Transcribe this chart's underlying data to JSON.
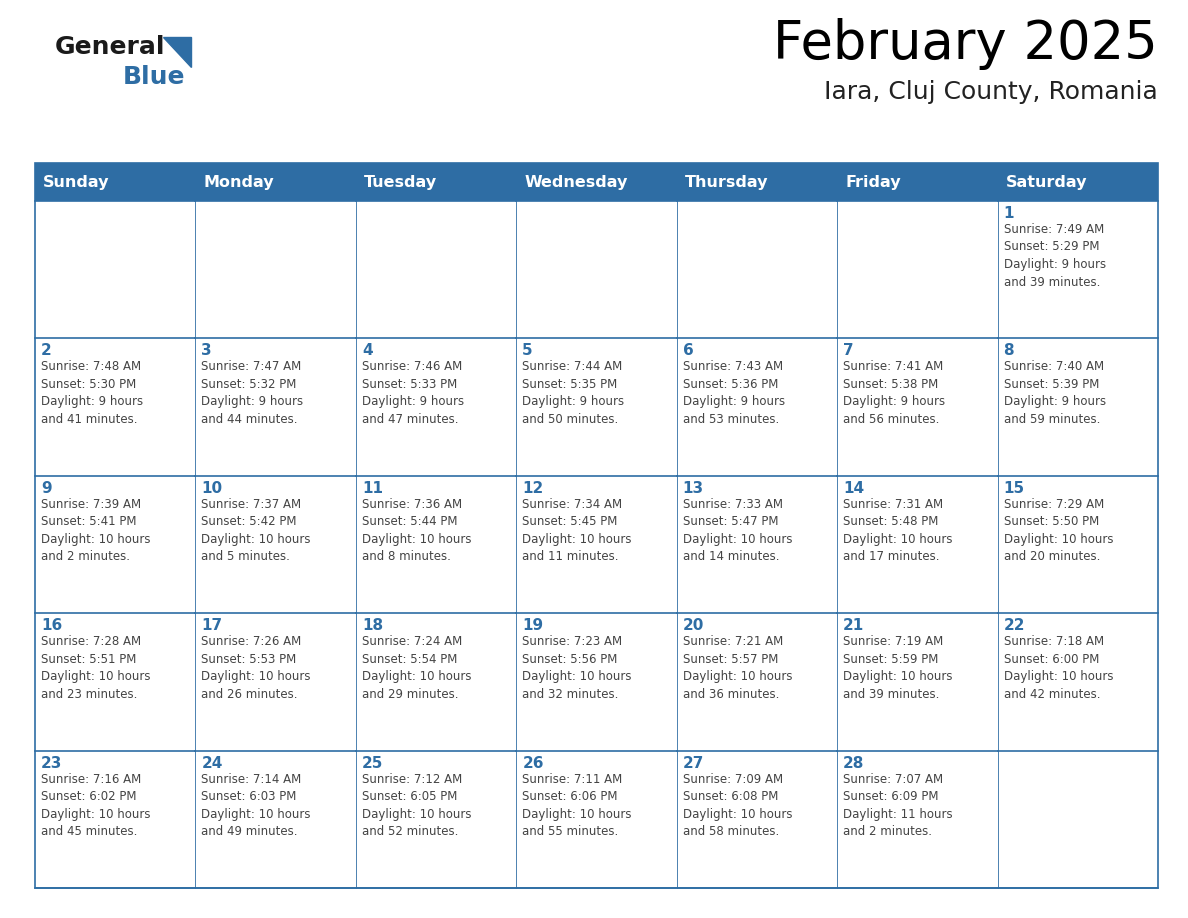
{
  "title": "February 2025",
  "subtitle": "Iara, Cluj County, Romania",
  "header_bg_color": "#2E6DA4",
  "header_text_color": "#FFFFFF",
  "cell_bg_color": "#FFFFFF",
  "border_color": "#2E6DA4",
  "day_headers": [
    "Sunday",
    "Monday",
    "Tuesday",
    "Wednesday",
    "Thursday",
    "Friday",
    "Saturday"
  ],
  "title_color": "#000000",
  "subtitle_color": "#222222",
  "day_num_color": "#2E6DA4",
  "cell_text_color": "#444444",
  "logo_triangle_color": "#2E6DA4",
  "calendar_data": [
    [
      {
        "day": "",
        "info": ""
      },
      {
        "day": "",
        "info": ""
      },
      {
        "day": "",
        "info": ""
      },
      {
        "day": "",
        "info": ""
      },
      {
        "day": "",
        "info": ""
      },
      {
        "day": "",
        "info": ""
      },
      {
        "day": "1",
        "info": "Sunrise: 7:49 AM\nSunset: 5:29 PM\nDaylight: 9 hours\nand 39 minutes."
      }
    ],
    [
      {
        "day": "2",
        "info": "Sunrise: 7:48 AM\nSunset: 5:30 PM\nDaylight: 9 hours\nand 41 minutes."
      },
      {
        "day": "3",
        "info": "Sunrise: 7:47 AM\nSunset: 5:32 PM\nDaylight: 9 hours\nand 44 minutes."
      },
      {
        "day": "4",
        "info": "Sunrise: 7:46 AM\nSunset: 5:33 PM\nDaylight: 9 hours\nand 47 minutes."
      },
      {
        "day": "5",
        "info": "Sunrise: 7:44 AM\nSunset: 5:35 PM\nDaylight: 9 hours\nand 50 minutes."
      },
      {
        "day": "6",
        "info": "Sunrise: 7:43 AM\nSunset: 5:36 PM\nDaylight: 9 hours\nand 53 minutes."
      },
      {
        "day": "7",
        "info": "Sunrise: 7:41 AM\nSunset: 5:38 PM\nDaylight: 9 hours\nand 56 minutes."
      },
      {
        "day": "8",
        "info": "Sunrise: 7:40 AM\nSunset: 5:39 PM\nDaylight: 9 hours\nand 59 minutes."
      }
    ],
    [
      {
        "day": "9",
        "info": "Sunrise: 7:39 AM\nSunset: 5:41 PM\nDaylight: 10 hours\nand 2 minutes."
      },
      {
        "day": "10",
        "info": "Sunrise: 7:37 AM\nSunset: 5:42 PM\nDaylight: 10 hours\nand 5 minutes."
      },
      {
        "day": "11",
        "info": "Sunrise: 7:36 AM\nSunset: 5:44 PM\nDaylight: 10 hours\nand 8 minutes."
      },
      {
        "day": "12",
        "info": "Sunrise: 7:34 AM\nSunset: 5:45 PM\nDaylight: 10 hours\nand 11 minutes."
      },
      {
        "day": "13",
        "info": "Sunrise: 7:33 AM\nSunset: 5:47 PM\nDaylight: 10 hours\nand 14 minutes."
      },
      {
        "day": "14",
        "info": "Sunrise: 7:31 AM\nSunset: 5:48 PM\nDaylight: 10 hours\nand 17 minutes."
      },
      {
        "day": "15",
        "info": "Sunrise: 7:29 AM\nSunset: 5:50 PM\nDaylight: 10 hours\nand 20 minutes."
      }
    ],
    [
      {
        "day": "16",
        "info": "Sunrise: 7:28 AM\nSunset: 5:51 PM\nDaylight: 10 hours\nand 23 minutes."
      },
      {
        "day": "17",
        "info": "Sunrise: 7:26 AM\nSunset: 5:53 PM\nDaylight: 10 hours\nand 26 minutes."
      },
      {
        "day": "18",
        "info": "Sunrise: 7:24 AM\nSunset: 5:54 PM\nDaylight: 10 hours\nand 29 minutes."
      },
      {
        "day": "19",
        "info": "Sunrise: 7:23 AM\nSunset: 5:56 PM\nDaylight: 10 hours\nand 32 minutes."
      },
      {
        "day": "20",
        "info": "Sunrise: 7:21 AM\nSunset: 5:57 PM\nDaylight: 10 hours\nand 36 minutes."
      },
      {
        "day": "21",
        "info": "Sunrise: 7:19 AM\nSunset: 5:59 PM\nDaylight: 10 hours\nand 39 minutes."
      },
      {
        "day": "22",
        "info": "Sunrise: 7:18 AM\nSunset: 6:00 PM\nDaylight: 10 hours\nand 42 minutes."
      }
    ],
    [
      {
        "day": "23",
        "info": "Sunrise: 7:16 AM\nSunset: 6:02 PM\nDaylight: 10 hours\nand 45 minutes."
      },
      {
        "day": "24",
        "info": "Sunrise: 7:14 AM\nSunset: 6:03 PM\nDaylight: 10 hours\nand 49 minutes."
      },
      {
        "day": "25",
        "info": "Sunrise: 7:12 AM\nSunset: 6:05 PM\nDaylight: 10 hours\nand 52 minutes."
      },
      {
        "day": "26",
        "info": "Sunrise: 7:11 AM\nSunset: 6:06 PM\nDaylight: 10 hours\nand 55 minutes."
      },
      {
        "day": "27",
        "info": "Sunrise: 7:09 AM\nSunset: 6:08 PM\nDaylight: 10 hours\nand 58 minutes."
      },
      {
        "day": "28",
        "info": "Sunrise: 7:07 AM\nSunset: 6:09 PM\nDaylight: 11 hours\nand 2 minutes."
      },
      {
        "day": "",
        "info": ""
      }
    ]
  ]
}
